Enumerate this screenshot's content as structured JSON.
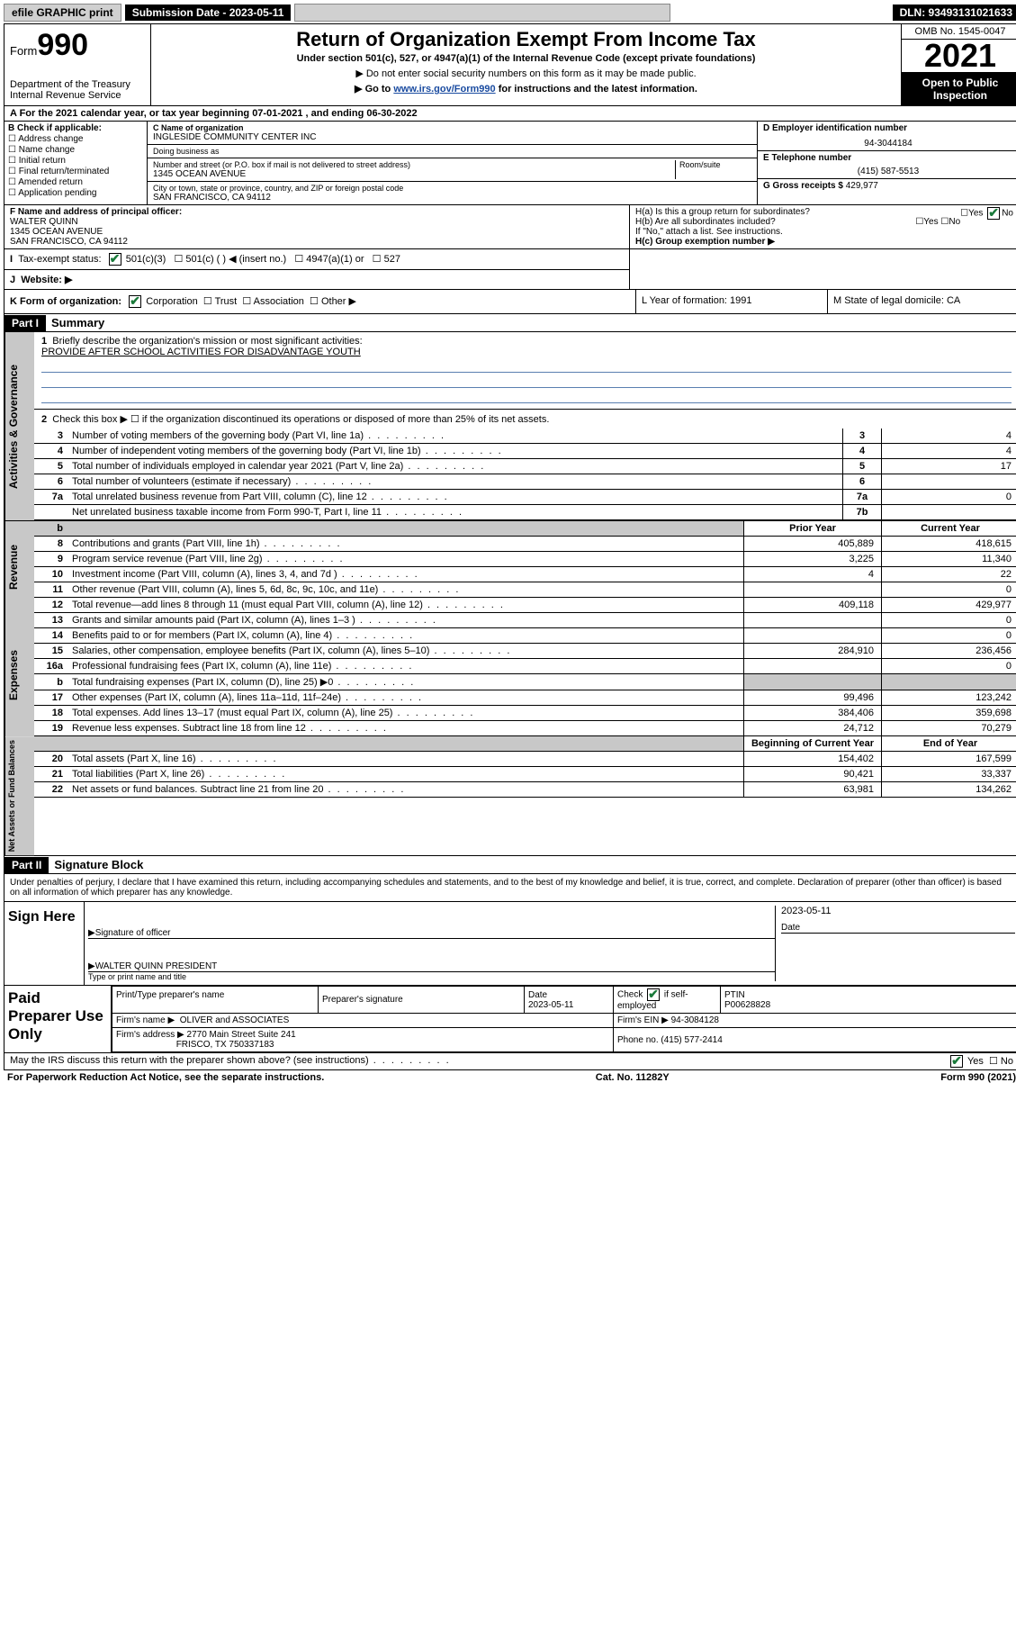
{
  "topbar": {
    "efile": "efile GRAPHIC print",
    "sub_label": "Submission Date - 2023-05-11",
    "dln": "DLN: 93493131021633"
  },
  "header": {
    "form_prefix": "Form",
    "form_num": "990",
    "dept": "Department of the Treasury",
    "irs": "Internal Revenue Service",
    "title": "Return of Organization Exempt From Income Tax",
    "sub": "Under section 501(c), 527, or 4947(a)(1) of the Internal Revenue Code (except private foundations)",
    "note1": "▶ Do not enter social security numbers on this form as it may be made public.",
    "note2_pre": "▶ Go to ",
    "note2_link": "www.irs.gov/Form990",
    "note2_post": " for instructions and the latest information.",
    "omb": "OMB No. 1545-0047",
    "year": "2021",
    "inspect": "Open to Public Inspection"
  },
  "row_a": "A For the 2021 calendar year, or tax year beginning 07-01-2021   , and ending 06-30-2022",
  "col_b": {
    "label": "B Check if applicable:",
    "items": [
      "Address change",
      "Name change",
      "Initial return",
      "Final return/terminated",
      "Amended return",
      "Application pending"
    ]
  },
  "col_c": {
    "name_label": "C Name of organization",
    "name": "INGLESIDE COMMUNITY CENTER INC",
    "dba_label": "Doing business as",
    "dba": "",
    "addr_label": "Number and street (or P.O. box if mail is not delivered to street address)",
    "room_label": "Room/suite",
    "addr": "1345 OCEAN AVENUE",
    "city_label": "City or town, state or province, country, and ZIP or foreign postal code",
    "city": "SAN FRANCISCO, CA  94112"
  },
  "col_d": {
    "label": "D Employer identification number",
    "ein": "94-3044184"
  },
  "col_e": {
    "label": "E Telephone number",
    "phone": "(415) 587-5513"
  },
  "col_g": {
    "label": "G Gross receipts $",
    "val": "429,977"
  },
  "col_f": {
    "label": "F Name and address of principal officer:",
    "name": "WALTER QUINN",
    "addr1": "1345 OCEAN AVENUE",
    "addr2": "SAN FRANCISCO, CA  94112"
  },
  "col_h": {
    "ha": "H(a)  Is this a group return for subordinates?",
    "hb": "H(b)  Are all subordinates included?",
    "note": "If \"No,\" attach a list. See instructions.",
    "hc": "H(c)  Group exemption number ▶"
  },
  "row_i": {
    "label": "Tax-exempt status:",
    "opts": [
      "501(c)(3)",
      "501(c) (  ) ◀ (insert no.)",
      "4947(a)(1) or",
      "527"
    ]
  },
  "row_j": {
    "label": "Website: ▶"
  },
  "row_k": {
    "label": "K Form of organization:",
    "opts": [
      "Corporation",
      "Trust",
      "Association",
      "Other ▶"
    ]
  },
  "row_l": "L Year of formation: 1991",
  "row_m": "M State of legal domicile: CA",
  "part1": {
    "hdr": "Part I",
    "title": "Summary",
    "q1": "Briefly describe the organization's mission or most significant activities:",
    "mission": "PROVIDE AFTER SCHOOL ACTIVITIES FOR DISADVANTAGE YOUTH",
    "q2": "Check this box ▶ ☐  if the organization discontinued its operations or disposed of more than 25% of its net assets.",
    "lines_gov": [
      {
        "n": "3",
        "d": "Number of voting members of the governing body (Part VI, line 1a)",
        "box": "3",
        "v": "4"
      },
      {
        "n": "4",
        "d": "Number of independent voting members of the governing body (Part VI, line 1b)",
        "box": "4",
        "v": "4"
      },
      {
        "n": "5",
        "d": "Total number of individuals employed in calendar year 2021 (Part V, line 2a)",
        "box": "5",
        "v": "17"
      },
      {
        "n": "6",
        "d": "Total number of volunteers (estimate if necessary)",
        "box": "6",
        "v": ""
      },
      {
        "n": "7a",
        "d": "Total unrelated business revenue from Part VIII, column (C), line 12",
        "box": "7a",
        "v": "0"
      },
      {
        "n": "",
        "d": "Net unrelated business taxable income from Form 990-T, Part I, line 11",
        "box": "7b",
        "v": ""
      }
    ],
    "hdr_prior": "Prior Year",
    "hdr_curr": "Current Year",
    "lines_rev": [
      {
        "n": "8",
        "d": "Contributions and grants (Part VIII, line 1h)",
        "p": "405,889",
        "c": "418,615"
      },
      {
        "n": "9",
        "d": "Program service revenue (Part VIII, line 2g)",
        "p": "3,225",
        "c": "11,340"
      },
      {
        "n": "10",
        "d": "Investment income (Part VIII, column (A), lines 3, 4, and 7d )",
        "p": "4",
        "c": "22"
      },
      {
        "n": "11",
        "d": "Other revenue (Part VIII, column (A), lines 5, 6d, 8c, 9c, 10c, and 11e)",
        "p": "",
        "c": "0"
      },
      {
        "n": "12",
        "d": "Total revenue—add lines 8 through 11 (must equal Part VIII, column (A), line 12)",
        "p": "409,118",
        "c": "429,977"
      }
    ],
    "lines_exp": [
      {
        "n": "13",
        "d": "Grants and similar amounts paid (Part IX, column (A), lines 1–3 )",
        "p": "",
        "c": "0"
      },
      {
        "n": "14",
        "d": "Benefits paid to or for members (Part IX, column (A), line 4)",
        "p": "",
        "c": "0"
      },
      {
        "n": "15",
        "d": "Salaries, other compensation, employee benefits (Part IX, column (A), lines 5–10)",
        "p": "284,910",
        "c": "236,456"
      },
      {
        "n": "16a",
        "d": "Professional fundraising fees (Part IX, column (A), line 11e)",
        "p": "",
        "c": "0"
      },
      {
        "n": "b",
        "d": "Total fundraising expenses (Part IX, column (D), line 25) ▶0",
        "p": "",
        "c": "",
        "shade": true
      },
      {
        "n": "17",
        "d": "Other expenses (Part IX, column (A), lines 11a–11d, 11f–24e)",
        "p": "99,496",
        "c": "123,242"
      },
      {
        "n": "18",
        "d": "Total expenses. Add lines 13–17 (must equal Part IX, column (A), line 25)",
        "p": "384,406",
        "c": "359,698"
      },
      {
        "n": "19",
        "d": "Revenue less expenses. Subtract line 18 from line 12",
        "p": "24,712",
        "c": "70,279"
      }
    ],
    "hdr_beg": "Beginning of Current Year",
    "hdr_end": "End of Year",
    "lines_na": [
      {
        "n": "20",
        "d": "Total assets (Part X, line 16)",
        "p": "154,402",
        "c": "167,599"
      },
      {
        "n": "21",
        "d": "Total liabilities (Part X, line 26)",
        "p": "90,421",
        "c": "33,337"
      },
      {
        "n": "22",
        "d": "Net assets or fund balances. Subtract line 21 from line 20",
        "p": "63,981",
        "c": "134,262"
      }
    ],
    "tab_gov": "Activities & Governance",
    "tab_rev": "Revenue",
    "tab_exp": "Expenses",
    "tab_na": "Net Assets or Fund Balances"
  },
  "part2": {
    "hdr": "Part II",
    "title": "Signature Block",
    "decl": "Under penalties of perjury, I declare that I have examined this return, including accompanying schedules and statements, and to the best of my knowledge and belief, it is true, correct, and complete. Declaration of preparer (other than officer) is based on all information of which preparer has any knowledge.",
    "sign_here": "Sign Here",
    "sig_officer": "Signature of officer",
    "sig_date": "Date",
    "sig_date_val": "2023-05-11",
    "officer": "WALTER QUINN PRESIDENT",
    "type_name": "Type or print name and title",
    "paid": "Paid Preparer Use Only",
    "prep_name_lbl": "Print/Type preparer's name",
    "prep_sig_lbl": "Preparer's signature",
    "prep_date_lbl": "Date",
    "prep_date": "2023-05-11",
    "prep_check": "Check ☑ if self-employed",
    "ptin_lbl": "PTIN",
    "ptin": "P00628828",
    "firm_name_lbl": "Firm's name    ▶",
    "firm_name": "OLIVER and ASSOCIATES",
    "firm_ein_lbl": "Firm's EIN ▶",
    "firm_ein": "94-3084128",
    "firm_addr_lbl": "Firm's address ▶",
    "firm_addr1": "2770 Main Street Suite 241",
    "firm_addr2": "FRISCO, TX  750337183",
    "firm_phone_lbl": "Phone no.",
    "firm_phone": "(415) 577-2414",
    "may_irs": "May the IRS discuss this return with the preparer shown above? (see instructions)"
  },
  "footer": {
    "left": "For Paperwork Reduction Act Notice, see the separate instructions.",
    "mid": "Cat. No. 11282Y",
    "right": "Form 990 (2021)"
  }
}
